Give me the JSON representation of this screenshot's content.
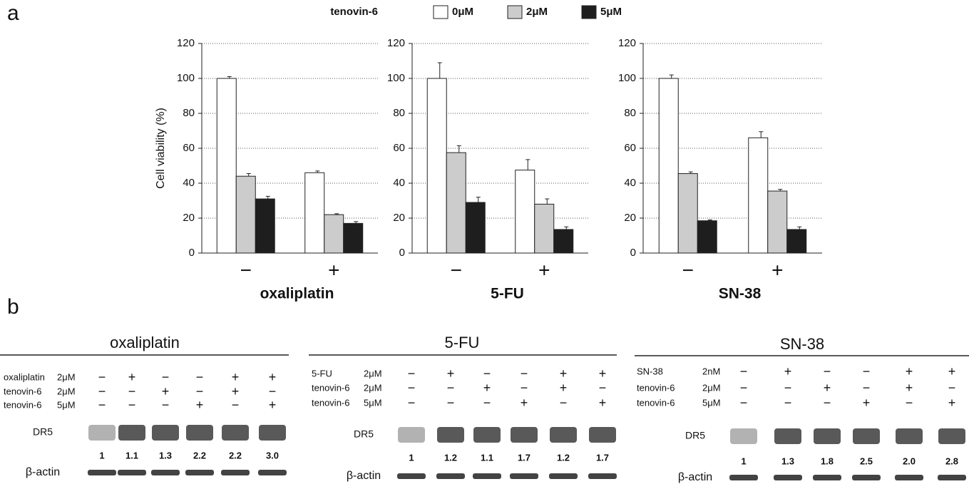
{
  "panel_labels": [
    "a",
    "b"
  ],
  "legend_title": "tenovin-6",
  "chart_data": [
    {
      "type": "bar",
      "title": "oxaliplatin",
      "ylabel": "Cell viability (%)",
      "categories": [
        "−",
        "+"
      ],
      "series": [
        {
          "name": "0μM",
          "color": "#ffffff",
          "values": [
            100,
            46
          ],
          "errors": [
            1,
            1
          ]
        },
        {
          "name": "2μM",
          "color": "#cccccc",
          "values": [
            44,
            22
          ],
          "errors": [
            1.5,
            0.5
          ]
        },
        {
          "name": "5μM",
          "color": "#1e1e1e",
          "values": [
            31,
            17
          ],
          "errors": [
            1.5,
            1
          ]
        }
      ],
      "ylim": [
        0,
        120
      ],
      "yticks": [
        0,
        20,
        40,
        60,
        80,
        100,
        120
      ],
      "grid": true
    },
    {
      "type": "bar",
      "title": "5-FU",
      "categories": [
        "−",
        "+"
      ],
      "series": [
        {
          "name": "0μM",
          "color": "#ffffff",
          "values": [
            100,
            47.5
          ],
          "errors": [
            9,
            6
          ]
        },
        {
          "name": "2μM",
          "color": "#cccccc",
          "values": [
            57.5,
            28
          ],
          "errors": [
            4,
            3
          ]
        },
        {
          "name": "5μM",
          "color": "#1e1e1e",
          "values": [
            29,
            13.5
          ],
          "errors": [
            3,
            1.5
          ]
        }
      ],
      "ylim": [
        0,
        120
      ],
      "yticks": [
        0,
        20,
        40,
        60,
        80,
        100,
        120
      ],
      "grid": true
    },
    {
      "type": "bar",
      "title": "SN-38",
      "categories": [
        "−",
        "+"
      ],
      "series": [
        {
          "name": "0μM",
          "color": "#ffffff",
          "values": [
            100,
            66
          ],
          "errors": [
            2,
            3.5
          ]
        },
        {
          "name": "2μM",
          "color": "#cccccc",
          "values": [
            45.5,
            35.5
          ],
          "errors": [
            1,
            1
          ]
        },
        {
          "name": "5μM",
          "color": "#1e1e1e",
          "values": [
            18.5,
            13.5
          ],
          "errors": [
            0.5,
            1.5
          ]
        }
      ],
      "ylim": [
        0,
        120
      ],
      "yticks": [
        0,
        20,
        40,
        60,
        80,
        100,
        120
      ],
      "grid": true
    }
  ],
  "blots": [
    {
      "title": "oxaliplatin",
      "rows": [
        {
          "drug": "oxaliplatin",
          "dose": "2μM",
          "signs": [
            "−",
            "+",
            "−",
            "−",
            "+",
            "+"
          ]
        },
        {
          "drug": "tenovin-6",
          "dose": "2μM",
          "signs": [
            "−",
            "−",
            "+",
            "−",
            "+",
            "−"
          ]
        },
        {
          "drug": "tenovin-6",
          "dose": "5μM",
          "signs": [
            "−",
            "−",
            "−",
            "+",
            "−",
            "+"
          ]
        }
      ],
      "target": "DR5",
      "quant": [
        "1",
        "1.1",
        "1.3",
        "2.2",
        "2.2",
        "3.0"
      ],
      "loading": "β-actin"
    },
    {
      "title": "5-FU",
      "rows": [
        {
          "drug": "5-FU",
          "dose": "2μM",
          "signs": [
            "−",
            "+",
            "−",
            "−",
            "+",
            "+"
          ]
        },
        {
          "drug": "tenovin-6",
          "dose": "2μM",
          "signs": [
            "−",
            "−",
            "+",
            "−",
            "+",
            "−"
          ]
        },
        {
          "drug": "tenovin-6",
          "dose": "5μM",
          "signs": [
            "−",
            "−",
            "−",
            "+",
            "−",
            "+"
          ]
        }
      ],
      "target": "DR5",
      "quant": [
        "1",
        "1.2",
        "1.1",
        "1.7",
        "1.2",
        "1.7"
      ],
      "loading": "β-actin"
    },
    {
      "title": "SN-38",
      "rows": [
        {
          "drug": "SN-38",
          "dose": "2nM",
          "signs": [
            "−",
            "+",
            "−",
            "−",
            "+",
            "+"
          ]
        },
        {
          "drug": "tenovin-6",
          "dose": "2μM",
          "signs": [
            "−",
            "−",
            "+",
            "−",
            "+",
            "−"
          ]
        },
        {
          "drug": "tenovin-6",
          "dose": "5μM",
          "signs": [
            "−",
            "−",
            "−",
            "+",
            "−",
            "+"
          ]
        }
      ],
      "target": "DR5",
      "quant": [
        "1",
        "1.3",
        "1.8",
        "2.5",
        "2.0",
        "2.8"
      ],
      "loading": "β-actin"
    }
  ]
}
